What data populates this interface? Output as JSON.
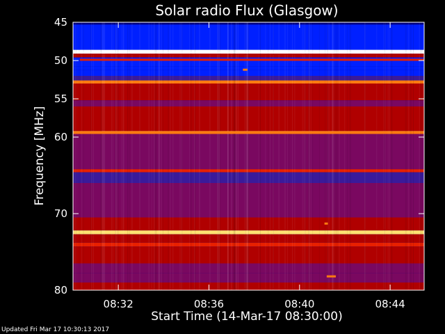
{
  "chart_data": {
    "type": "heatmap",
    "title": "Solar radio Flux (Glasgow)",
    "xlabel": "Start Time (14-Mar-17 08:30:00)",
    "ylabel": "Frequency [MHz]",
    "x_unit": "minutes after 08:30:00",
    "xlim": [
      0,
      15.5
    ],
    "ylim": [
      45,
      80
    ],
    "y_inverted": true,
    "x_ticks": [
      {
        "value": 2,
        "label": "08:32"
      },
      {
        "value": 6,
        "label": "08:36"
      },
      {
        "value": 10,
        "label": "08:40"
      },
      {
        "value": 14,
        "label": "08:44"
      }
    ],
    "y_ticks": [
      {
        "value": 45,
        "label": "45"
      },
      {
        "value": 50,
        "label": "50"
      },
      {
        "value": 55,
        "label": "55"
      },
      {
        "value": 60,
        "label": "60"
      },
      {
        "value": 70,
        "label": "70"
      },
      {
        "value": 80,
        "label": "80"
      }
    ],
    "colormap": [
      "#000080",
      "#0020ff",
      "#3a1a9a",
      "#7a0860",
      "#b00000",
      "#e82000",
      "#ff7a10",
      "#ffe070",
      "#ffffff"
    ],
    "bands": [
      {
        "f0": 45.0,
        "f1": 45.3,
        "level": 0.0
      },
      {
        "f0": 45.3,
        "f1": 48.6,
        "level": 0.12
      },
      {
        "f0": 48.6,
        "f1": 49.1,
        "level": 0.98
      },
      {
        "f0": 49.1,
        "f1": 49.6,
        "level": 0.55
      },
      {
        "f0": 49.6,
        "f1": 50.8,
        "level": 0.12
      },
      {
        "f0": 50.8,
        "f1": 51.2,
        "level": 0.18
      },
      {
        "f0": 51.2,
        "f1": 52.0,
        "level": 0.1
      },
      {
        "f0": 52.0,
        "f1": 52.6,
        "level": 0.2
      },
      {
        "f0": 52.6,
        "f1": 53.0,
        "level": 0.7
      },
      {
        "f0": 53.0,
        "f1": 55.2,
        "level": 0.55
      },
      {
        "f0": 55.2,
        "f1": 56.0,
        "level": 0.42
      },
      {
        "f0": 56.0,
        "f1": 57.5,
        "level": 0.5
      },
      {
        "f0": 57.5,
        "f1": 59.2,
        "level": 0.45
      },
      {
        "f0": 59.2,
        "f1": 59.6,
        "level": 0.75
      },
      {
        "f0": 59.6,
        "f1": 61.0,
        "level": 0.4
      },
      {
        "f0": 61.0,
        "f1": 64.2,
        "level": 0.35
      },
      {
        "f0": 64.2,
        "f1": 64.6,
        "level": 0.58
      },
      {
        "f0": 64.6,
        "f1": 66.0,
        "level": 0.3
      },
      {
        "f0": 66.0,
        "f1": 67.5,
        "level": 0.4
      },
      {
        "f0": 67.5,
        "f1": 70.5,
        "level": 0.33
      },
      {
        "f0": 70.5,
        "f1": 72.2,
        "level": 0.45
      },
      {
        "f0": 72.2,
        "f1": 72.7,
        "level": 0.92
      },
      {
        "f0": 72.7,
        "f1": 73.8,
        "level": 0.5
      },
      {
        "f0": 73.8,
        "f1": 74.3,
        "level": 0.6
      },
      {
        "f0": 74.3,
        "f1": 76.5,
        "level": 0.45
      },
      {
        "f0": 76.5,
        "f1": 77.8,
        "level": 0.32
      },
      {
        "f0": 77.8,
        "f1": 79.0,
        "level": 0.4
      },
      {
        "f0": 79.0,
        "f1": 80.0,
        "level": 0.5
      }
    ],
    "features": [
      {
        "f": 59.4,
        "t_end": 13.8,
        "level": 0.75
      },
      {
        "f": 49.9,
        "t_start": 0.3,
        "t_end": 15.5,
        "level": 0.62
      },
      {
        "f": 51.2,
        "t_start": 7.5,
        "t_end": 7.7,
        "level": 0.7
      },
      {
        "f": 71.3,
        "t_start": 11.1,
        "t_end": 11.25,
        "level": 0.8
      },
      {
        "f": 78.2,
        "t_start": 11.2,
        "t_end": 11.6,
        "level": 0.8
      }
    ]
  },
  "footer": {
    "updated": "Updated Fri Mar 17 10:30:13 2017"
  }
}
